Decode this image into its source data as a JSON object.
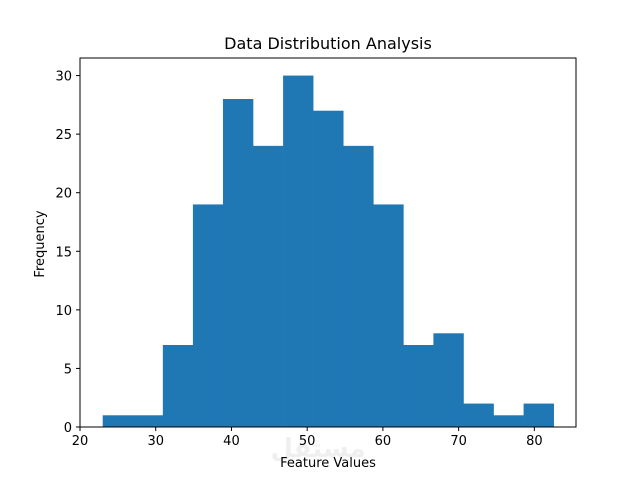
{
  "chart_data": {
    "type": "bar",
    "title": "Data Distribution Analysis",
    "xlabel": "Feature Values",
    "ylabel": "Frequency",
    "bin_edges": [
      23.0,
      26.97,
      30.94,
      34.91,
      38.88,
      42.85,
      46.82,
      50.79,
      54.76,
      58.73,
      62.7,
      66.67,
      70.64,
      74.61,
      78.58,
      82.55
    ],
    "values": [
      1,
      1,
      7,
      19,
      28,
      24,
      30,
      27,
      24,
      19,
      7,
      8,
      2,
      1,
      2
    ],
    "xlim": [
      20.0,
      85.5
    ],
    "ylim": [
      0,
      31.5
    ],
    "xticks": [
      20,
      30,
      40,
      50,
      60,
      70,
      80
    ],
    "yticks": [
      0,
      5,
      10,
      15,
      20,
      25,
      30
    ],
    "bar_color": "#1f77b4",
    "grid": false,
    "watermark": "مستقل"
  }
}
